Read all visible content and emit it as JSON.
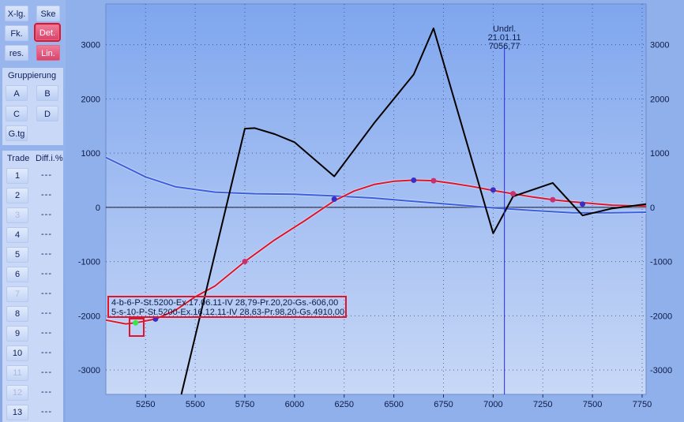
{
  "toolbar": {
    "buttons": [
      {
        "label": "X-lg."
      },
      {
        "label": "Ske"
      },
      {
        "label": "Fk."
      },
      {
        "label": "Det."
      },
      {
        "label": "res."
      },
      {
        "label": "Lin."
      }
    ]
  },
  "grouping": {
    "title": "Gruppierung",
    "buttons": [
      {
        "label": "A"
      },
      {
        "label": "B"
      },
      {
        "label": "C"
      },
      {
        "label": "D"
      },
      {
        "label": "G.tg"
      }
    ]
  },
  "trades": {
    "header_trade": "Trade",
    "header_diff": "Diff.i.%",
    "rows": [
      {
        "num": "1",
        "diff": "---"
      },
      {
        "num": "2",
        "diff": "---"
      },
      {
        "num": "3",
        "diff": "---"
      },
      {
        "num": "4",
        "diff": "---"
      },
      {
        "num": "5",
        "diff": "---"
      },
      {
        "num": "6",
        "diff": "---"
      },
      {
        "num": "7",
        "diff": "---"
      },
      {
        "num": "8",
        "diff": "---"
      },
      {
        "num": "9",
        "diff": "---"
      },
      {
        "num": "10",
        "diff": "---"
      },
      {
        "num": "11",
        "diff": "---"
      },
      {
        "num": "12",
        "diff": "---"
      },
      {
        "num": "13",
        "diff": "---"
      }
    ]
  },
  "marker": {
    "line1": "Undrl.",
    "line2": "21.01.11",
    "line3": "7056,77"
  },
  "info": {
    "line1": "4-b-6-P-St.5200-Ex.17.06.11-IV 28,79-Pr.20,20-Gs.-606,00",
    "line2": "5-s-10-P-St.5200-Ex.16.12.11-IV 28,63-Pr.98,20-Gs.4910,00"
  },
  "colors": {
    "red": "#e0142c",
    "blue": "#3c5fe0",
    "black": "#000000",
    "plot_top": "#7fa6ee",
    "plot_bottom": "#c8d8f6"
  },
  "chart_data": {
    "type": "line",
    "xlim": [
      5050,
      7770
    ],
    "ylim": [
      -3450,
      3750
    ],
    "xticks": [
      5250,
      5500,
      5750,
      6000,
      6250,
      6500,
      6750,
      7000,
      7250,
      7500,
      7750
    ],
    "yticks": [
      3000,
      2000,
      1000,
      0,
      -1000,
      -2000,
      -3000
    ],
    "marker_x": 7056.77,
    "series": [
      {
        "color": "black",
        "points": [
          [
            5430,
            -3450
          ],
          [
            5750,
            1450
          ],
          [
            5800,
            1460
          ],
          [
            5900,
            1350
          ],
          [
            6000,
            1200
          ],
          [
            6200,
            570
          ],
          [
            6400,
            1550
          ],
          [
            6600,
            2450
          ],
          [
            6700,
            3300
          ],
          [
            7000,
            -480
          ],
          [
            7100,
            200
          ],
          [
            7300,
            450
          ],
          [
            7450,
            -150
          ],
          [
            7600,
            -20
          ],
          [
            7770,
            60
          ]
        ]
      },
      {
        "color": "red",
        "points": [
          [
            5050,
            -2080
          ],
          [
            5150,
            -2150
          ],
          [
            5200,
            -2130
          ],
          [
            5300,
            -2060
          ],
          [
            5400,
            -1900
          ],
          [
            5500,
            -1650
          ],
          [
            5600,
            -1450
          ],
          [
            5750,
            -1000
          ],
          [
            5900,
            -600
          ],
          [
            6050,
            -250
          ],
          [
            6200,
            120
          ],
          [
            6300,
            300
          ],
          [
            6400,
            420
          ],
          [
            6500,
            480
          ],
          [
            6600,
            500
          ],
          [
            6700,
            490
          ],
          [
            6800,
            440
          ],
          [
            6900,
            380
          ],
          [
            7000,
            310
          ],
          [
            7100,
            250
          ],
          [
            7200,
            190
          ],
          [
            7300,
            140
          ],
          [
            7400,
            100
          ],
          [
            7500,
            70
          ],
          [
            7600,
            40
          ],
          [
            7770,
            20
          ]
        ]
      },
      {
        "color": "blue",
        "points": [
          [
            5050,
            920
          ],
          [
            5150,
            740
          ],
          [
            5250,
            560
          ],
          [
            5400,
            380
          ],
          [
            5600,
            280
          ],
          [
            5800,
            250
          ],
          [
            6000,
            240
          ],
          [
            6200,
            210
          ],
          [
            6400,
            170
          ],
          [
            6600,
            110
          ],
          [
            6800,
            50
          ],
          [
            7000,
            -10
          ],
          [
            7200,
            -60
          ],
          [
            7400,
            -100
          ],
          [
            7600,
            -100
          ],
          [
            7770,
            -90
          ]
        ]
      }
    ],
    "dots": [
      {
        "x": 5200,
        "y": -2130,
        "color": "#32e84a"
      },
      {
        "x": 5300,
        "y": -2060,
        "color": "#3a2ec4"
      },
      {
        "x": 5750,
        "y": -1000,
        "color": "#c8306e"
      },
      {
        "x": 6200,
        "y": 150,
        "color": "#3a2ec4"
      },
      {
        "x": 6600,
        "y": 500,
        "color": "#3a2ec4"
      },
      {
        "x": 6700,
        "y": 490,
        "color": "#c8306e"
      },
      {
        "x": 7000,
        "y": 320,
        "color": "#3a2ec4"
      },
      {
        "x": 7100,
        "y": 250,
        "color": "#c8306e"
      },
      {
        "x": 7300,
        "y": 140,
        "color": "#c8306e"
      },
      {
        "x": 7450,
        "y": 60,
        "color": "#3a2ec4"
      }
    ]
  }
}
